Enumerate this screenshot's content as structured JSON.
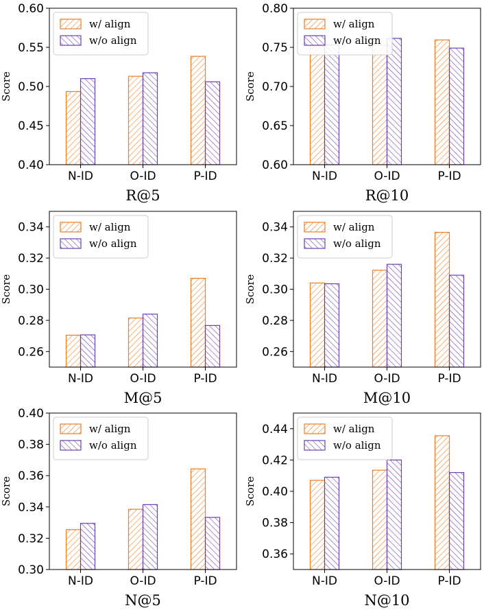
{
  "colors": {
    "w_align": "#ef7d22",
    "wo_align": "#6a3fb5"
  },
  "chart_data": [
    {
      "type": "bar",
      "categories": [
        "N-ID",
        "O-ID",
        "P-ID"
      ],
      "series": [
        {
          "name": "w/ align",
          "values": [
            0.4935,
            0.513,
            0.5385
          ]
        },
        {
          "name": "w/o align",
          "values": [
            0.51,
            0.5175,
            0.506
          ]
        }
      ],
      "ylim": [
        0.4,
        0.6
      ],
      "yticks": [
        "0.40",
        "0.45",
        "0.50",
        "0.55",
        "0.60"
      ],
      "ylabel": "Score",
      "xlabel": "R@5",
      "legend": "upper-left"
    },
    {
      "type": "bar",
      "categories": [
        "N-ID",
        "O-ID",
        "P-ID"
      ],
      "series": [
        {
          "name": "w/ align",
          "values": [
            0.753,
            0.753,
            0.7595
          ]
        },
        {
          "name": "w/o align",
          "values": [
            0.753,
            0.7615,
            0.749
          ]
        }
      ],
      "ylim": [
        0.6,
        0.8
      ],
      "yticks": [
        "0.60",
        "0.65",
        "0.70",
        "0.75",
        "0.80"
      ],
      "ylabel": "Score",
      "xlabel": "R@10",
      "legend": "upper-left"
    },
    {
      "type": "bar",
      "categories": [
        "N-ID",
        "O-ID",
        "P-ID"
      ],
      "series": [
        {
          "name": "w/ align",
          "values": [
            0.2705,
            0.2815,
            0.307
          ]
        },
        {
          "name": "w/o align",
          "values": [
            0.2707,
            0.284,
            0.2767
          ]
        }
      ],
      "ylim": [
        0.25,
        0.35
      ],
      "yticks": [
        "0.26",
        "0.28",
        "0.30",
        "0.32",
        "0.34"
      ],
      "ylabel": "Score",
      "xlabel": "M@5",
      "legend": "upper-left"
    },
    {
      "type": "bar",
      "categories": [
        "N-ID",
        "O-ID",
        "P-ID"
      ],
      "series": [
        {
          "name": "w/ align",
          "values": [
            0.304,
            0.3122,
            0.3365
          ]
        },
        {
          "name": "w/o align",
          "values": [
            0.3035,
            0.316,
            0.309
          ]
        }
      ],
      "ylim": [
        0.25,
        0.35
      ],
      "yticks": [
        "0.26",
        "0.28",
        "0.30",
        "0.32",
        "0.34"
      ],
      "ylabel": "Score",
      "xlabel": "M@10",
      "legend": "upper-left"
    },
    {
      "type": "bar",
      "categories": [
        "N-ID",
        "O-ID",
        "P-ID"
      ],
      "series": [
        {
          "name": "w/ align",
          "values": [
            0.3255,
            0.3385,
            0.3643
          ]
        },
        {
          "name": "w/o align",
          "values": [
            0.3295,
            0.3415,
            0.3333
          ]
        }
      ],
      "ylim": [
        0.3,
        0.4
      ],
      "yticks": [
        "0.30",
        "0.32",
        "0.34",
        "0.36",
        "0.38",
        "0.40"
      ],
      "ylabel": "Score",
      "xlabel": "N@5",
      "legend": "upper-left"
    },
    {
      "type": "bar",
      "categories": [
        "N-ID",
        "O-ID",
        "P-ID"
      ],
      "series": [
        {
          "name": "w/ align",
          "values": [
            0.407,
            0.4135,
            0.4355
          ]
        },
        {
          "name": "w/o align",
          "values": [
            0.409,
            0.42,
            0.412
          ]
        }
      ],
      "ylim": [
        0.35,
        0.45
      ],
      "yticks": [
        "0.36",
        "0.38",
        "0.40",
        "0.42",
        "0.44"
      ],
      "ylabel": "Score",
      "xlabel": "N@10",
      "legend": "upper-left"
    }
  ]
}
